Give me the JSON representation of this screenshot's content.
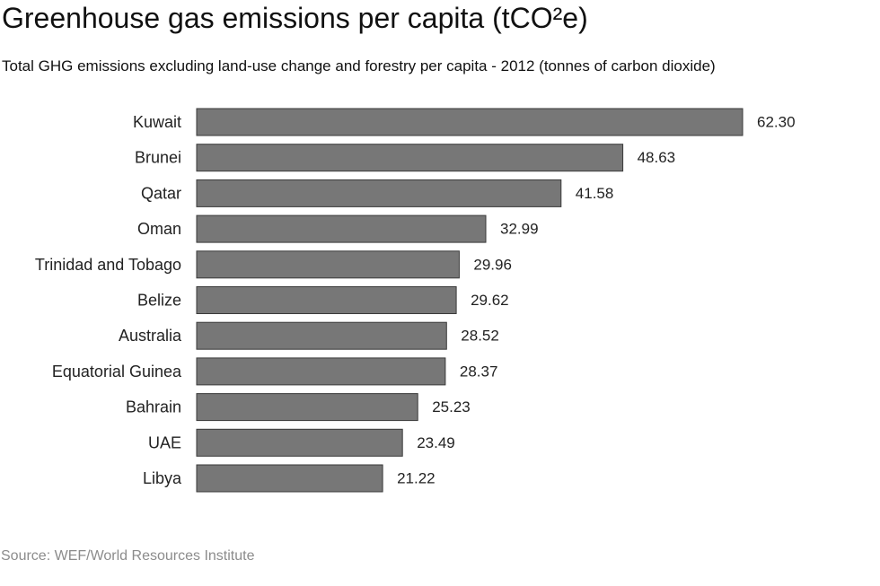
{
  "title": "Greenhouse gas emissions per capita (tCO²e)",
  "subtitle": "Total GHG emissions excluding land-use change and forestry per capita - 2012 (tonnes of carbon dioxide)",
  "source": "Source: WEF/World Resources Institute",
  "colors": {
    "bar_fill": "#777777",
    "bar_stroke": "#3a3a3a",
    "source_text": "#8c8c8c"
  },
  "chart_data": {
    "type": "bar",
    "orientation": "horizontal",
    "title": "Greenhouse gas emissions per capita (tCO²e)",
    "subtitle": "Total GHG emissions excluding land-use change and forestry per capita - 2012 (tonnes of carbon dioxide)",
    "categories": [
      "Kuwait",
      "Brunei",
      "Qatar",
      "Oman",
      "Trinidad and Tobago",
      "Belize",
      "Australia",
      "Equatorial Guinea",
      "Bahrain",
      "UAE",
      "Libya"
    ],
    "values": [
      62.3,
      48.63,
      41.58,
      32.99,
      29.96,
      29.62,
      28.52,
      28.37,
      25.23,
      23.49,
      21.22
    ],
    "value_labels": [
      "62.30",
      "48.63",
      "41.58",
      "32.99",
      "29.96",
      "29.62",
      "28.52",
      "28.37",
      "25.23",
      "23.49",
      "21.22"
    ],
    "xlim": [
      0,
      62.3
    ],
    "grid": false,
    "legend": "none"
  }
}
